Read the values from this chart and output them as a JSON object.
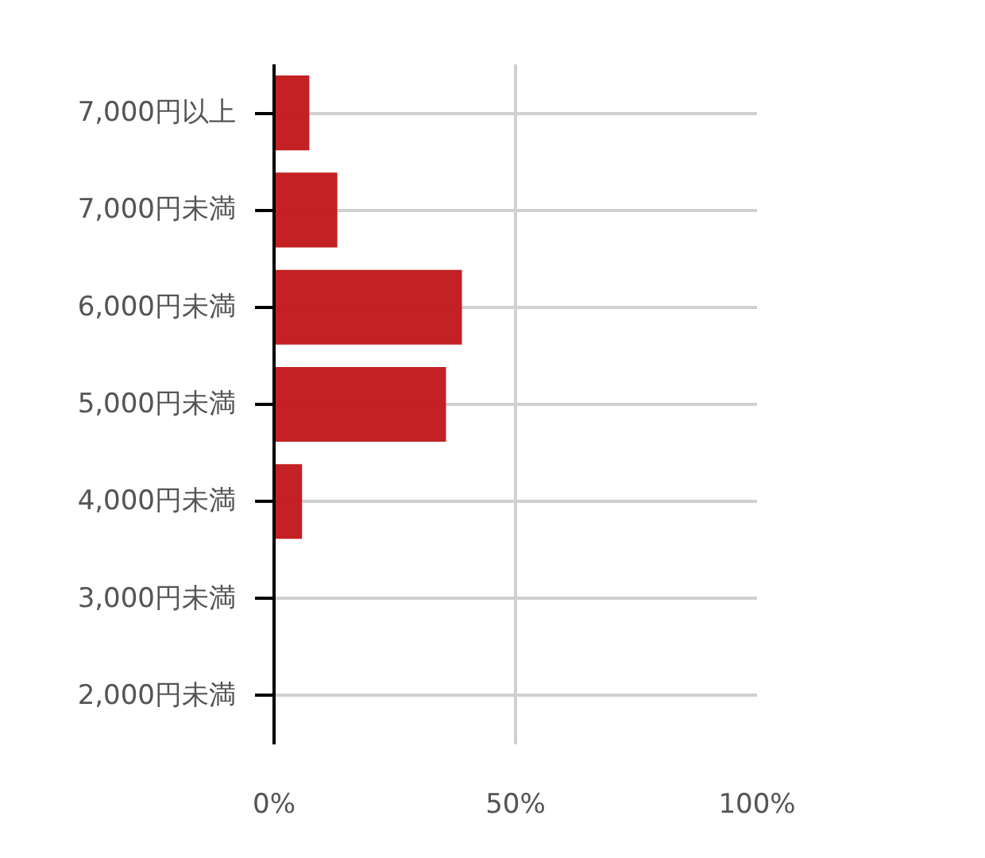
{
  "chart_data": {
    "type": "bar",
    "orientation": "horizontal",
    "categories": [
      "7,000円以上",
      "7,000円未満",
      "6,000円未満",
      "5,000円未満",
      "4,000円未満",
      "3,000円未満",
      "2,000円未満"
    ],
    "values": [
      7.3,
      13.1,
      38.9,
      35.6,
      5.8,
      0,
      0
    ],
    "color": "#c21d1f",
    "xlim": [
      0,
      100
    ],
    "xticks": [
      {
        "value": 0,
        "label": "0%"
      },
      {
        "value": 50,
        "label": "50%"
      },
      {
        "value": 100,
        "label": "100%"
      }
    ],
    "grid": true
  }
}
